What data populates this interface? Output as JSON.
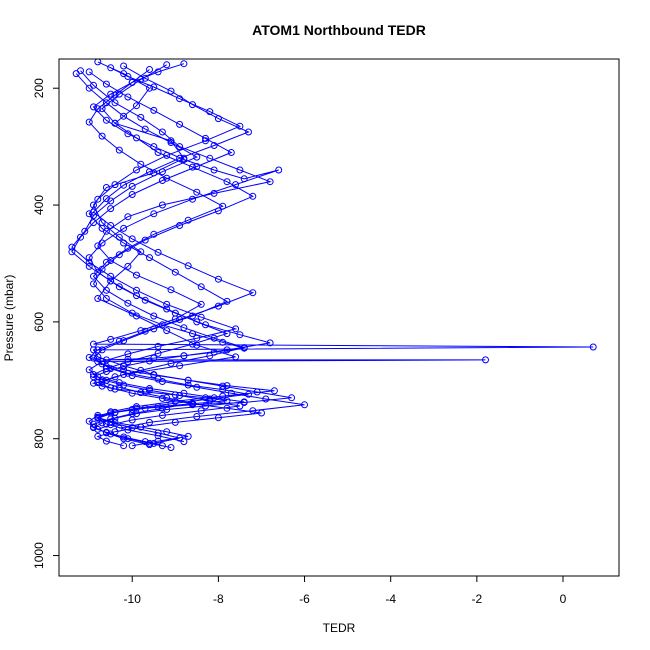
{
  "chart_data": {
    "type": "line",
    "title": "ATOM1 Northbound TEDR",
    "xlabel": "TEDR",
    "ylabel": "Pressure (mbar)",
    "xlim": [
      -11.7,
      1.3
    ],
    "ylim": [
      1035,
      150
    ],
    "y_reversed": true,
    "grid": false,
    "color": "#0000ff",
    "x_ticks": [
      -10,
      -8,
      -6,
      -4,
      -2,
      0
    ],
    "x_tick_labels": [
      "-10",
      "-8",
      "-6",
      "-4",
      "-2",
      "0"
    ],
    "y_ticks": [
      200,
      400,
      600,
      800,
      1000
    ],
    "y_tick_labels": [
      "200",
      "400",
      "600",
      "800",
      "1000"
    ],
    "series": [
      {
        "x": [
          -10.8,
          -10.2,
          -9.6,
          -9.9,
          -10.4,
          -9.1,
          -8.8,
          -9.5,
          -10.6,
          -10.9,
          -10.7,
          -10.3,
          -9.8,
          -10.1,
          -10.5,
          -10.8,
          -9.9,
          -9.2,
          -8.5,
          -7.6,
          -8.9,
          -10.2,
          -10.6,
          -10.9,
          -10.7,
          -10.4,
          -9.7,
          -9.0,
          -8.3,
          -7.8,
          -8.6,
          -9.4,
          -10.0,
          -10.4,
          -10.8,
          -11.0,
          -10.9,
          -10.6,
          -10.2,
          -9.6
        ],
        "y": [
          155,
          175,
          200,
          230,
          260,
          290,
          320,
          345,
          370,
          400,
          430,
          455,
          480,
          505,
          530,
          560,
          590,
          615,
          640,
          660,
          675,
          690,
          700,
          705,
          710,
          715,
          720,
          725,
          730,
          735,
          740,
          745,
          750,
          755,
          760,
          770,
          780,
          790,
          800,
          810
        ]
      },
      {
        "x": [
          -11.2,
          -10.9,
          -10.4,
          -9.8,
          -9.3,
          -8.9,
          -8.2,
          -7.5,
          -6.8,
          -8.1,
          -9.3,
          -10.1,
          -10.6,
          -10.8,
          -10.5,
          -9.9,
          -9.1,
          -8.4,
          -9.0,
          -9.8,
          -10.5,
          -10.9,
          0.7,
          -10.9,
          -10.8,
          -10.2,
          -9.5,
          -8.7,
          -7.9,
          -7.1,
          -6.3,
          -7.4,
          -8.6,
          -9.7,
          -10.4,
          -10.8,
          -10.6,
          -10.1,
          -9.4,
          -8.8
        ],
        "y": [
          170,
          195,
          225,
          250,
          275,
          300,
          320,
          340,
          360,
          380,
          400,
          420,
          445,
          470,
          495,
          520,
          545,
          570,
          595,
          615,
          630,
          638,
          643,
          648,
          660,
          675,
          690,
          700,
          710,
          720,
          730,
          738,
          742,
          748,
          755,
          765,
          775,
          785,
          795,
          805
        ]
      },
      {
        "x": [
          -9.2,
          -9.8,
          -10.3,
          -10.7,
          -10.4,
          -9.9,
          -9.4,
          -8.6,
          -7.8,
          -7.2,
          -8.0,
          -8.9,
          -9.7,
          -10.3,
          -10.7,
          -10.9,
          -10.6,
          -10.0,
          -9.3,
          -8.6,
          -7.9,
          -7.4,
          -8.1,
          -8.8,
          -9.5,
          -10.1,
          -10.6,
          -1.8,
          -10.8,
          -10.5,
          -10.0,
          -9.3,
          -8.5,
          -7.7,
          -6.9,
          -6.0,
          -7.2,
          -8.5,
          -9.6,
          -10.3
        ],
        "y": [
          160,
          185,
          210,
          235,
          260,
          285,
          310,
          335,
          360,
          385,
          410,
          435,
          460,
          485,
          510,
          535,
          560,
          585,
          605,
          620,
          635,
          645,
          652,
          658,
          662,
          664,
          665,
          665,
          668,
          680,
          692,
          702,
          712,
          722,
          732,
          742,
          752,
          762,
          772,
          782
        ]
      },
      {
        "x": [
          -10.5,
          -10.1,
          -9.5,
          -8.9,
          -8.2,
          -7.5,
          -8.3,
          -9.2,
          -9.9,
          -10.4,
          -10.8,
          -11.0,
          -10.7,
          -10.2,
          -9.6,
          -9.0,
          -8.4,
          -7.8,
          -8.6,
          -9.5,
          -10.2,
          -10.7,
          -10.9,
          -10.6,
          -10.1,
          -9.4,
          -8.7,
          -7.9,
          -7.3,
          -8.2,
          -9.1,
          -9.9,
          -10.5,
          -10.8,
          -10.4,
          -9.8,
          -9.2,
          -8.7,
          -9.4,
          -10.0
        ],
        "y": [
          165,
          180,
          198,
          218,
          240,
          265,
          290,
          315,
          340,
          365,
          390,
          415,
          440,
          465,
          490,
          515,
          540,
          565,
          590,
          612,
          632,
          648,
          662,
          676,
          688,
          698,
          708,
          716,
          724,
          732,
          740,
          748,
          756,
          764,
          772,
          780,
          788,
          796,
          804,
          812
        ]
      },
      {
        "x": [
          -11.3,
          -11.0,
          -10.6,
          -10.2,
          -9.7,
          -9.1,
          -8.5,
          -9.3,
          -10.0,
          -10.5,
          -10.9,
          -11.1,
          -11.4,
          -11.0,
          -10.5,
          -9.9,
          -9.2,
          -8.4,
          -7.6,
          -8.5,
          -9.4,
          -10.1,
          -10.7,
          -11.0,
          -10.8,
          -10.3,
          -9.6,
          -8.8,
          -8.1,
          -7.4,
          -8.3,
          -9.2,
          -9.9,
          -10.4,
          -10.7,
          -10.9,
          -10.6,
          -10.2,
          -9.7,
          -9.3
        ],
        "y": [
          175,
          200,
          225,
          248,
          270,
          293,
          318,
          343,
          368,
          393,
          418,
          445,
          472,
          498,
          522,
          546,
          570,
          592,
          612,
          628,
          642,
          655,
          668,
          682,
          694,
          704,
          714,
          722,
          730,
          737,
          744,
          750,
          757,
          765,
          773,
          781,
          789,
          797,
          805,
          812
        ]
      },
      {
        "x": [
          -8.8,
          -9.4,
          -10.0,
          -10.5,
          -10.9,
          -10.6,
          -10.1,
          -9.5,
          -8.8,
          -8.1,
          -7.4,
          -6.6,
          -7.6,
          -8.6,
          -9.5,
          -10.2,
          -10.7,
          -11.0,
          -10.8,
          -10.3,
          -9.7,
          -9.0,
          -8.3,
          -7.5,
          -6.8,
          -7.8,
          -8.8,
          -9.6,
          -10.2,
          -10.6,
          -10.9,
          -10.7,
          -10.3,
          -9.8,
          -9.2,
          -8.6,
          -9.3,
          -10.0,
          -10.5,
          -10.9
        ],
        "y": [
          158,
          172,
          190,
          210,
          232,
          255,
          278,
          300,
          322,
          340,
          355,
          340,
          365,
          390,
          415,
          440,
          465,
          490,
          515,
          540,
          563,
          585,
          605,
          622,
          636,
          648,
          658,
          667,
          676,
          685,
          694,
          703,
          712,
          721,
          730,
          739,
          748,
          757,
          766,
          775
        ]
      },
      {
        "x": [
          -10.2,
          -9.7,
          -9.1,
          -8.6,
          -8.0,
          -7.3,
          -8.1,
          -8.9,
          -9.6,
          -10.2,
          -10.6,
          -10.9,
          -10.5,
          -10.0,
          -9.4,
          -8.7,
          -8.0,
          -7.2,
          -8.0,
          -8.9,
          -9.7,
          -10.3,
          -10.8,
          -11.0,
          -10.7,
          -10.2,
          -9.5,
          -8.7,
          -7.8,
          -6.7,
          -7.9,
          -9.0,
          -9.9,
          -10.5,
          -10.8,
          -10.5,
          -10.0,
          -9.4,
          -8.9,
          -9.5
        ],
        "y": [
          162,
          183,
          205,
          228,
          252,
          275,
          298,
          320,
          343,
          366,
          389,
          412,
          435,
          458,
          481,
          504,
          527,
          550,
          573,
          596,
          616,
          633,
          648,
          661,
          672,
          682,
          691,
          700,
          709,
          718,
          727,
          736,
          745,
          754,
          763,
          772,
          781,
          790,
          799,
          808
        ]
      },
      {
        "x": [
          -9.6,
          -10.0,
          -10.4,
          -10.8,
          -11.0,
          -10.7,
          -10.3,
          -9.8,
          -9.2,
          -8.5,
          -7.9,
          -8.7,
          -9.5,
          -10.1,
          -10.6,
          -10.9,
          -10.6,
          -10.1,
          -9.5,
          -8.8,
          -8.1,
          -7.4,
          -8.2,
          -9.1,
          -9.8,
          -10.4,
          -10.8,
          -10.5,
          -10.0,
          -9.3,
          -8.6,
          -7.8,
          -7.0,
          -8.0,
          -9.0,
          -9.8,
          -10.4,
          -10.8,
          -10.6,
          -10.2
        ],
        "y": [
          168,
          190,
          212,
          235,
          258,
          282,
          306,
          330,
          354,
          378,
          402,
          426,
          450,
          474,
          498,
          522,
          546,
          568,
          590,
          610,
          628,
          644,
          658,
          671,
          683,
          694,
          704,
          713,
          722,
          731,
          740,
          748,
          756,
          764,
          772,
          780,
          788,
          796,
          804,
          812
        ]
      },
      {
        "x": [
          -11.0,
          -10.6,
          -10.1,
          -9.5,
          -8.9,
          -8.3,
          -7.7,
          -8.5,
          -9.3,
          -10.0,
          -10.5,
          -10.9,
          -11.2,
          -11.4,
          -11.0,
          -10.5,
          -9.9,
          -9.2,
          -8.5,
          -7.8,
          -8.6,
          -9.4,
          -10.1,
          -10.6,
          -10.9,
          -10.7,
          -10.2,
          -9.6,
          -8.9,
          -8.2,
          -7.5,
          -8.4,
          -9.3,
          -10.0,
          -10.5,
          -10.8,
          -10.5,
          -10.1,
          -9.6,
          -9.1
        ],
        "y": [
          172,
          193,
          215,
          238,
          262,
          286,
          310,
          334,
          358,
          382,
          406,
          430,
          455,
          480,
          505,
          530,
          555,
          578,
          600,
          620,
          638,
          654,
          668,
          680,
          690,
          699,
          708,
          717,
          726,
          735,
          744,
          752,
          760,
          768,
          776,
          784,
          792,
          800,
          808,
          815
        ]
      }
    ]
  }
}
